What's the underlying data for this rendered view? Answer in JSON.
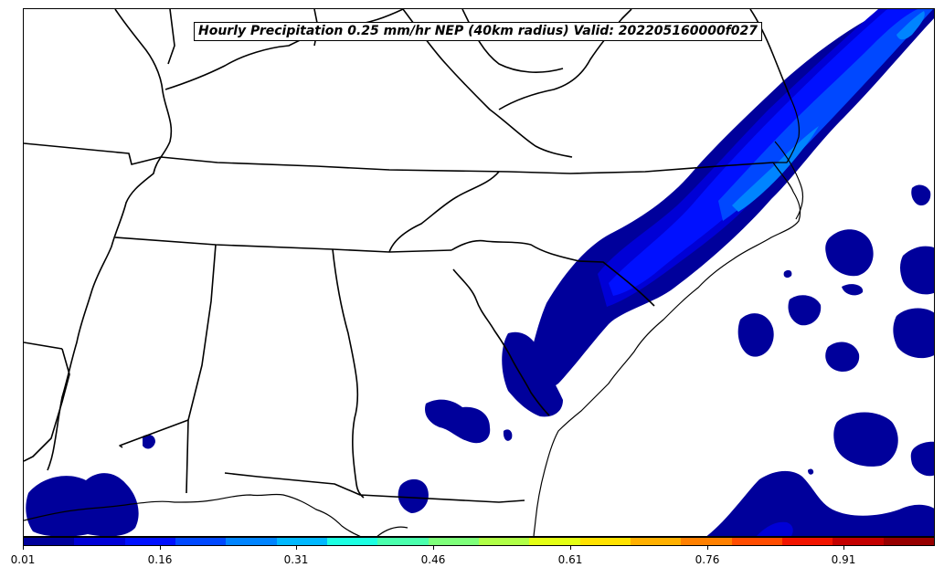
{
  "title": "Hourly Precipitation 0.25 mm/hr NEP (40km radius) Valid: 202205160000f027",
  "colorbar": {
    "tick_labels": [
      "0.01",
      "0.16",
      "0.31",
      "0.46",
      "0.61",
      "0.76",
      "0.91"
    ],
    "tick_values": [
      0.01,
      0.16,
      0.31,
      0.46,
      0.61,
      0.76,
      0.91
    ],
    "range": [
      0.01,
      1.01
    ],
    "colors": [
      "#00009b",
      "#0000d6",
      "#0010ff",
      "#0048ff",
      "#0084ff",
      "#00b8ff",
      "#1cffe2",
      "#4affad",
      "#7eff7a",
      "#b0ff47",
      "#e4ff14",
      "#ffe200",
      "#ffb000",
      "#ff8000",
      "#ff4c00",
      "#f21400",
      "#c40000",
      "#970000"
    ]
  },
  "map": {
    "region": "Southeastern United States",
    "probability_fill_colors": {
      "low": "#00009b",
      "mid1": "#0000d6",
      "mid2": "#0010ff",
      "mid3": "#0048ff",
      "high": "#0084ff",
      "peak": "#00b8ff"
    }
  }
}
